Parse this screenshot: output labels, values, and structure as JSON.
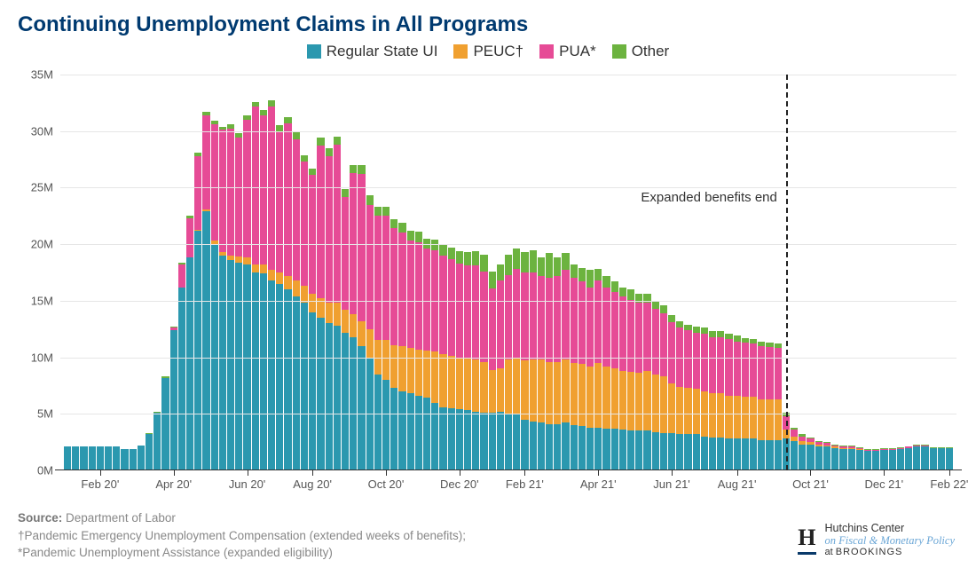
{
  "title": {
    "text": "Continuing Unemployment Claims in All Programs",
    "fontsize": 24,
    "color": "#003a70"
  },
  "legend": {
    "fontsize": 17,
    "items": [
      {
        "label": "Regular State UI",
        "color": "#2b98af"
      },
      {
        "label": "PEUC†",
        "color": "#f0a030"
      },
      {
        "label": "PUA*",
        "color": "#e64b96"
      },
      {
        "label": "Other",
        "color": "#6cb33f"
      }
    ]
  },
  "chart": {
    "type": "stacked-bar",
    "background_color": "#ffffff",
    "grid_color": "#e6e6e6",
    "axis_color": "#333333",
    "y": {
      "min": 0,
      "max": 35,
      "step": 5,
      "suffix": "M",
      "labels": [
        "0M",
        "5M",
        "10M",
        "15M",
        "20M",
        "25M",
        "30M",
        "35M"
      ]
    },
    "x": {
      "labels": [
        "Feb 20'",
        "Apr 20'",
        "Jun 20'",
        "Aug 20'",
        "Oct 20'",
        "Dec 20'",
        "Feb 21'",
        "Apr 21'",
        "Jun 21'",
        "Aug 21'",
        "Oct 21'",
        "Dec 21'",
        "Feb 22'"
      ],
      "label_bar_index": [
        4,
        13,
        22,
        30,
        39,
        48,
        56,
        65,
        74,
        82,
        91,
        100,
        108
      ]
    },
    "series_colors": {
      "regular": "#2b98af",
      "peuc": "#f0a030",
      "pua": "#e64b96",
      "other": "#6cb33f"
    },
    "annotation": {
      "text": "Expanded benefits end",
      "bar_index": 88,
      "fontsize": 15
    },
    "data": [
      {
        "r": 2.1,
        "p": 0.0,
        "u": 0.0,
        "o": 0.0
      },
      {
        "r": 2.1,
        "p": 0.0,
        "u": 0.0,
        "o": 0.0
      },
      {
        "r": 2.1,
        "p": 0.0,
        "u": 0.0,
        "o": 0.0
      },
      {
        "r": 2.1,
        "p": 0.0,
        "u": 0.0,
        "o": 0.0
      },
      {
        "r": 2.1,
        "p": 0.0,
        "u": 0.0,
        "o": 0.0
      },
      {
        "r": 2.1,
        "p": 0.0,
        "u": 0.0,
        "o": 0.0
      },
      {
        "r": 2.1,
        "p": 0.0,
        "u": 0.0,
        "o": 0.0
      },
      {
        "r": 1.9,
        "p": 0.0,
        "u": 0.0,
        "o": 0.0
      },
      {
        "r": 1.9,
        "p": 0.0,
        "u": 0.0,
        "o": 0.0
      },
      {
        "r": 2.2,
        "p": 0.0,
        "u": 0.0,
        "o": 0.0
      },
      {
        "r": 3.2,
        "p": 0.0,
        "u": 0.0,
        "o": 0.1
      },
      {
        "r": 5.1,
        "p": 0.0,
        "u": 0.0,
        "o": 0.1
      },
      {
        "r": 8.2,
        "p": 0.0,
        "u": 0.0,
        "o": 0.1
      },
      {
        "r": 12.4,
        "p": 0.0,
        "u": 0.2,
        "o": 0.1
      },
      {
        "r": 16.2,
        "p": 0.0,
        "u": 2.0,
        "o": 0.2
      },
      {
        "r": 18.8,
        "p": 0.0,
        "u": 3.5,
        "o": 0.2
      },
      {
        "r": 21.2,
        "p": 0.1,
        "u": 6.5,
        "o": 0.3
      },
      {
        "r": 22.9,
        "p": 0.2,
        "u": 8.3,
        "o": 0.3
      },
      {
        "r": 20.0,
        "p": 0.3,
        "u": 10.3,
        "o": 0.3
      },
      {
        "r": 19.0,
        "p": 0.3,
        "u": 10.8,
        "o": 0.3
      },
      {
        "r": 18.6,
        "p": 0.4,
        "u": 11.2,
        "o": 0.4
      },
      {
        "r": 18.4,
        "p": 0.5,
        "u": 10.5,
        "o": 0.4
      },
      {
        "r": 18.2,
        "p": 0.6,
        "u": 12.2,
        "o": 0.4
      },
      {
        "r": 17.5,
        "p": 0.7,
        "u": 14.0,
        "o": 0.4
      },
      {
        "r": 17.4,
        "p": 0.8,
        "u": 13.2,
        "o": 0.5
      },
      {
        "r": 16.8,
        "p": 0.9,
        "u": 14.5,
        "o": 0.5
      },
      {
        "r": 16.5,
        "p": 1.0,
        "u": 12.5,
        "o": 0.5
      },
      {
        "r": 16.0,
        "p": 1.2,
        "u": 13.5,
        "o": 0.5
      },
      {
        "r": 15.4,
        "p": 1.4,
        "u": 12.5,
        "o": 0.6
      },
      {
        "r": 14.8,
        "p": 1.5,
        "u": 11.0,
        "o": 0.6
      },
      {
        "r": 14.0,
        "p": 1.6,
        "u": 10.5,
        "o": 0.6
      },
      {
        "r": 13.5,
        "p": 1.7,
        "u": 13.5,
        "o": 0.7
      },
      {
        "r": 13.0,
        "p": 1.8,
        "u": 13.0,
        "o": 0.7
      },
      {
        "r": 12.8,
        "p": 2.0,
        "u": 14.0,
        "o": 0.7
      },
      {
        "r": 12.2,
        "p": 2.0,
        "u": 10.0,
        "o": 0.7
      },
      {
        "r": 11.8,
        "p": 2.0,
        "u": 12.5,
        "o": 0.7
      },
      {
        "r": 11.0,
        "p": 2.2,
        "u": 13.0,
        "o": 0.8
      },
      {
        "r": 10.0,
        "p": 2.5,
        "u": 11.0,
        "o": 0.8
      },
      {
        "r": 8.5,
        "p": 3.0,
        "u": 11.0,
        "o": 0.8
      },
      {
        "r": 8.0,
        "p": 3.5,
        "u": 11.0,
        "o": 0.8
      },
      {
        "r": 7.3,
        "p": 3.8,
        "u": 10.3,
        "o": 0.8
      },
      {
        "r": 7.0,
        "p": 4.0,
        "u": 10.0,
        "o": 0.9
      },
      {
        "r": 6.8,
        "p": 4.0,
        "u": 9.5,
        "o": 0.9
      },
      {
        "r": 6.6,
        "p": 4.1,
        "u": 9.5,
        "o": 0.9
      },
      {
        "r": 6.4,
        "p": 4.2,
        "u": 9.0,
        "o": 0.9
      },
      {
        "r": 6.0,
        "p": 4.5,
        "u": 9.0,
        "o": 0.9
      },
      {
        "r": 5.6,
        "p": 4.7,
        "u": 8.7,
        "o": 1.0
      },
      {
        "r": 5.5,
        "p": 4.6,
        "u": 8.6,
        "o": 1.0
      },
      {
        "r": 5.4,
        "p": 4.5,
        "u": 8.4,
        "o": 1.1
      },
      {
        "r": 5.3,
        "p": 4.6,
        "u": 8.2,
        "o": 1.2
      },
      {
        "r": 5.2,
        "p": 4.6,
        "u": 8.3,
        "o": 1.3
      },
      {
        "r": 5.1,
        "p": 4.5,
        "u": 8.0,
        "o": 1.5
      },
      {
        "r": 5.1,
        "p": 3.8,
        "u": 7.2,
        "o": 1.5
      },
      {
        "r": 5.2,
        "p": 3.8,
        "u": 7.8,
        "o": 1.4
      },
      {
        "r": 5.0,
        "p": 4.8,
        "u": 7.5,
        "o": 1.8
      },
      {
        "r": 5.0,
        "p": 5.0,
        "u": 7.8,
        "o": 1.8
      },
      {
        "r": 4.5,
        "p": 5.2,
        "u": 7.8,
        "o": 1.8
      },
      {
        "r": 4.3,
        "p": 5.5,
        "u": 7.7,
        "o": 2.0
      },
      {
        "r": 4.2,
        "p": 5.6,
        "u": 7.4,
        "o": 1.6
      },
      {
        "r": 4.1,
        "p": 5.5,
        "u": 7.4,
        "o": 2.2
      },
      {
        "r": 4.1,
        "p": 5.5,
        "u": 7.6,
        "o": 1.6
      },
      {
        "r": 4.2,
        "p": 5.6,
        "u": 7.9,
        "o": 1.5
      },
      {
        "r": 4.0,
        "p": 5.5,
        "u": 7.5,
        "o": 1.2
      },
      {
        "r": 3.9,
        "p": 5.5,
        "u": 7.3,
        "o": 1.2
      },
      {
        "r": 3.8,
        "p": 5.4,
        "u": 7.0,
        "o": 1.5
      },
      {
        "r": 3.8,
        "p": 5.7,
        "u": 7.3,
        "o": 1.0
      },
      {
        "r": 3.7,
        "p": 5.5,
        "u": 7.0,
        "o": 1.0
      },
      {
        "r": 3.7,
        "p": 5.3,
        "u": 6.8,
        "o": 0.9
      },
      {
        "r": 3.6,
        "p": 5.2,
        "u": 6.6,
        "o": 0.8
      },
      {
        "r": 3.5,
        "p": 5.2,
        "u": 6.4,
        "o": 0.9
      },
      {
        "r": 3.5,
        "p": 5.1,
        "u": 6.2,
        "o": 0.8
      },
      {
        "r": 3.5,
        "p": 5.3,
        "u": 6.0,
        "o": 0.8
      },
      {
        "r": 3.4,
        "p": 5.1,
        "u": 5.8,
        "o": 0.7
      },
      {
        "r": 3.3,
        "p": 5.0,
        "u": 5.6,
        "o": 0.7
      },
      {
        "r": 3.3,
        "p": 4.4,
        "u": 5.4,
        "o": 0.6
      },
      {
        "r": 3.2,
        "p": 4.2,
        "u": 5.2,
        "o": 0.6
      },
      {
        "r": 3.2,
        "p": 4.1,
        "u": 5.1,
        "o": 0.5
      },
      {
        "r": 3.2,
        "p": 4.0,
        "u": 5.0,
        "o": 0.5
      },
      {
        "r": 3.0,
        "p": 4.0,
        "u": 5.1,
        "o": 0.5
      },
      {
        "r": 2.9,
        "p": 3.9,
        "u": 5.0,
        "o": 0.5
      },
      {
        "r": 2.9,
        "p": 3.9,
        "u": 5.0,
        "o": 0.5
      },
      {
        "r": 2.8,
        "p": 3.8,
        "u": 5.0,
        "o": 0.5
      },
      {
        "r": 2.8,
        "p": 3.8,
        "u": 4.8,
        "o": 0.5
      },
      {
        "r": 2.8,
        "p": 3.7,
        "u": 4.8,
        "o": 0.4
      },
      {
        "r": 2.8,
        "p": 3.7,
        "u": 4.7,
        "o": 0.4
      },
      {
        "r": 2.7,
        "p": 3.6,
        "u": 4.7,
        "o": 0.4
      },
      {
        "r": 2.7,
        "p": 3.6,
        "u": 4.6,
        "o": 0.4
      },
      {
        "r": 2.7,
        "p": 3.6,
        "u": 4.5,
        "o": 0.4
      },
      {
        "r": 2.8,
        "p": 0.8,
        "u": 1.2,
        "o": 0.3
      },
      {
        "r": 2.6,
        "p": 0.4,
        "u": 0.6,
        "o": 0.2
      },
      {
        "r": 2.3,
        "p": 0.3,
        "u": 0.4,
        "o": 0.2
      },
      {
        "r": 2.3,
        "p": 0.2,
        "u": 0.3,
        "o": 0.1
      },
      {
        "r": 2.1,
        "p": 0.2,
        "u": 0.2,
        "o": 0.1
      },
      {
        "r": 2.1,
        "p": 0.1,
        "u": 0.2,
        "o": 0.1
      },
      {
        "r": 2.0,
        "p": 0.1,
        "u": 0.1,
        "o": 0.1
      },
      {
        "r": 1.9,
        "p": 0.1,
        "u": 0.1,
        "o": 0.1
      },
      {
        "r": 1.9,
        "p": 0.1,
        "u": 0.1,
        "o": 0.1
      },
      {
        "r": 1.8,
        "p": 0.1,
        "u": 0.1,
        "o": 0.05
      },
      {
        "r": 1.7,
        "p": 0.0,
        "u": 0.1,
        "o": 0.05
      },
      {
        "r": 1.7,
        "p": 0.0,
        "u": 0.1,
        "o": 0.05
      },
      {
        "r": 1.8,
        "p": 0.0,
        "u": 0.1,
        "o": 0.05
      },
      {
        "r": 1.8,
        "p": 0.0,
        "u": 0.1,
        "o": 0.05
      },
      {
        "r": 1.9,
        "p": 0.0,
        "u": 0.1,
        "o": 0.05
      },
      {
        "r": 2.0,
        "p": 0.0,
        "u": 0.1,
        "o": 0.05
      },
      {
        "r": 2.1,
        "p": 0.0,
        "u": 0.1,
        "o": 0.05
      },
      {
        "r": 2.1,
        "p": 0.0,
        "u": 0.1,
        "o": 0.05
      },
      {
        "r": 2.0,
        "p": 0.0,
        "u": 0.0,
        "o": 0.05
      },
      {
        "r": 2.0,
        "p": 0.0,
        "u": 0.0,
        "o": 0.05
      },
      {
        "r": 2.0,
        "p": 0.0,
        "u": 0.0,
        "o": 0.05
      }
    ]
  },
  "footer": {
    "source_label": "Source:",
    "source_value": "Department of Labor",
    "note1": "†Pandemic Emergency Unemployment Compensation (extended weeks of benefits);",
    "note2": "*Pandemic Unemployment Assistance (expanded eligibility)"
  },
  "brand": {
    "logo_letter": "H",
    "line1": "Hutchins Center",
    "line2": "on Fiscal & Monetary Policy",
    "line3_prefix": "at ",
    "line3_name": "BROOKINGS"
  }
}
